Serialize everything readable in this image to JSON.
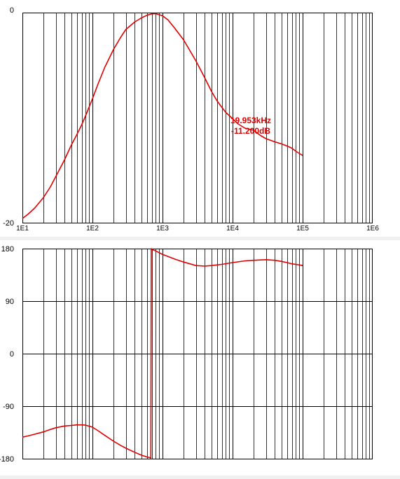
{
  "chart_data": [
    {
      "type": "line",
      "title": "",
      "xscale": "log",
      "xlim": [
        10,
        1000000
      ],
      "ylim": [
        -20,
        0
      ],
      "grid": true,
      "x_tick_labels": [
        "1E1",
        "1E2",
        "1E3",
        "1E4",
        "1E5",
        "1E6"
      ],
      "y_tick_labels": [
        "0",
        "-20"
      ],
      "line_color": "#e00000",
      "series": [
        {
          "x": [
            10,
            12,
            15,
            20,
            25,
            30,
            40,
            50,
            60,
            70,
            80,
            100,
            120,
            150,
            200,
            250,
            300,
            400,
            500,
            600,
            700,
            800,
            1000,
            1200,
            1500,
            2000,
            2500,
            3000,
            4000,
            5000,
            6000,
            7000,
            8000,
            10000,
            12000,
            15000,
            20000,
            25000,
            30000,
            40000,
            50000,
            60000,
            70000,
            80000,
            100000
          ],
          "y": [
            -19.6,
            -19.2,
            -18.6,
            -17.6,
            -16.6,
            -15.6,
            -14.0,
            -12.6,
            -11.6,
            -10.7,
            -9.8,
            -8.2,
            -6.8,
            -5.2,
            -3.5,
            -2.4,
            -1.6,
            -0.9,
            -0.5,
            -0.25,
            -0.12,
            -0.1,
            -0.3,
            -0.7,
            -1.5,
            -2.6,
            -3.7,
            -4.6,
            -6.2,
            -7.5,
            -8.4,
            -9.0,
            -9.5,
            -10.1,
            -10.6,
            -11.0,
            -11.2,
            -11.7,
            -12.0,
            -12.3,
            -12.5,
            -12.7,
            -12.9,
            -13.2,
            -13.6
          ]
        }
      ],
      "annotation": {
        "x": 19953,
        "y": -11.2,
        "lines": [
          "19.953kHz",
          "-11.200dB"
        ]
      }
    },
    {
      "type": "line",
      "title": "",
      "xscale": "log",
      "xlim": [
        10,
        1000000
      ],
      "ylim": [
        -180,
        180
      ],
      "grid": true,
      "y_tick_labels": [
        "180",
        "90",
        "0",
        "-90",
        "-180"
      ],
      "line_color": "#e00000",
      "series": [
        {
          "x": [
            10,
            12,
            15,
            20,
            25,
            30,
            40,
            50,
            60,
            70,
            80,
            100,
            120,
            150,
            200,
            250,
            300,
            400,
            500,
            600,
            650,
            680,
            690,
            700,
            800,
            1000,
            1500,
            2000,
            3000,
            4000,
            5000,
            7000,
            10000,
            15000,
            20000,
            30000,
            40000,
            50000,
            60000,
            70000,
            80000,
            100000
          ],
          "y": [
            -143,
            -141,
            -138,
            -134,
            -130,
            -127,
            -124,
            -123,
            -122,
            -122,
            -122.5,
            -126,
            -132,
            -140,
            -150,
            -157,
            -162,
            -169,
            -174,
            -177,
            -178,
            -179,
            180,
            179,
            176,
            170,
            162,
            157,
            151,
            150,
            151,
            153,
            156,
            159,
            160,
            161,
            160,
            158,
            156,
            154,
            153,
            151
          ]
        }
      ]
    }
  ]
}
